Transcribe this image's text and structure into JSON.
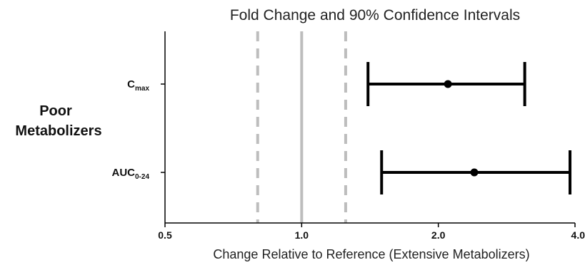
{
  "chart_data": {
    "type": "forest",
    "title": "Fold Change and 90% Confidence Intervals",
    "xlabel": "Change Relative to Reference (Extensive Metabolizers)",
    "x_scale": "log2",
    "xlim": [
      0.5,
      4.0
    ],
    "x_ticks": [
      0.5,
      1.0,
      2.0,
      4.0
    ],
    "x_tick_labels": [
      "0.5",
      "1.0",
      "2.0",
      "4.0"
    ],
    "group_label": [
      "Poor",
      "Metabolizers"
    ],
    "reference_line": 1.0,
    "bound_lines": [
      0.8,
      1.25
    ],
    "colors": {
      "ci": "#000000",
      "reference": "#bdbdbd",
      "bounds": "#bdbdbd",
      "axis": "#000000"
    },
    "series": [
      {
        "label_main": "C",
        "label_sub": "max",
        "estimate": 2.1,
        "ci_lower": 1.4,
        "ci_upper": 3.1
      },
      {
        "label_main": "AUC",
        "label_sub": "0-24",
        "estimate": 2.4,
        "ci_lower": 1.5,
        "ci_upper": 3.9
      }
    ]
  }
}
